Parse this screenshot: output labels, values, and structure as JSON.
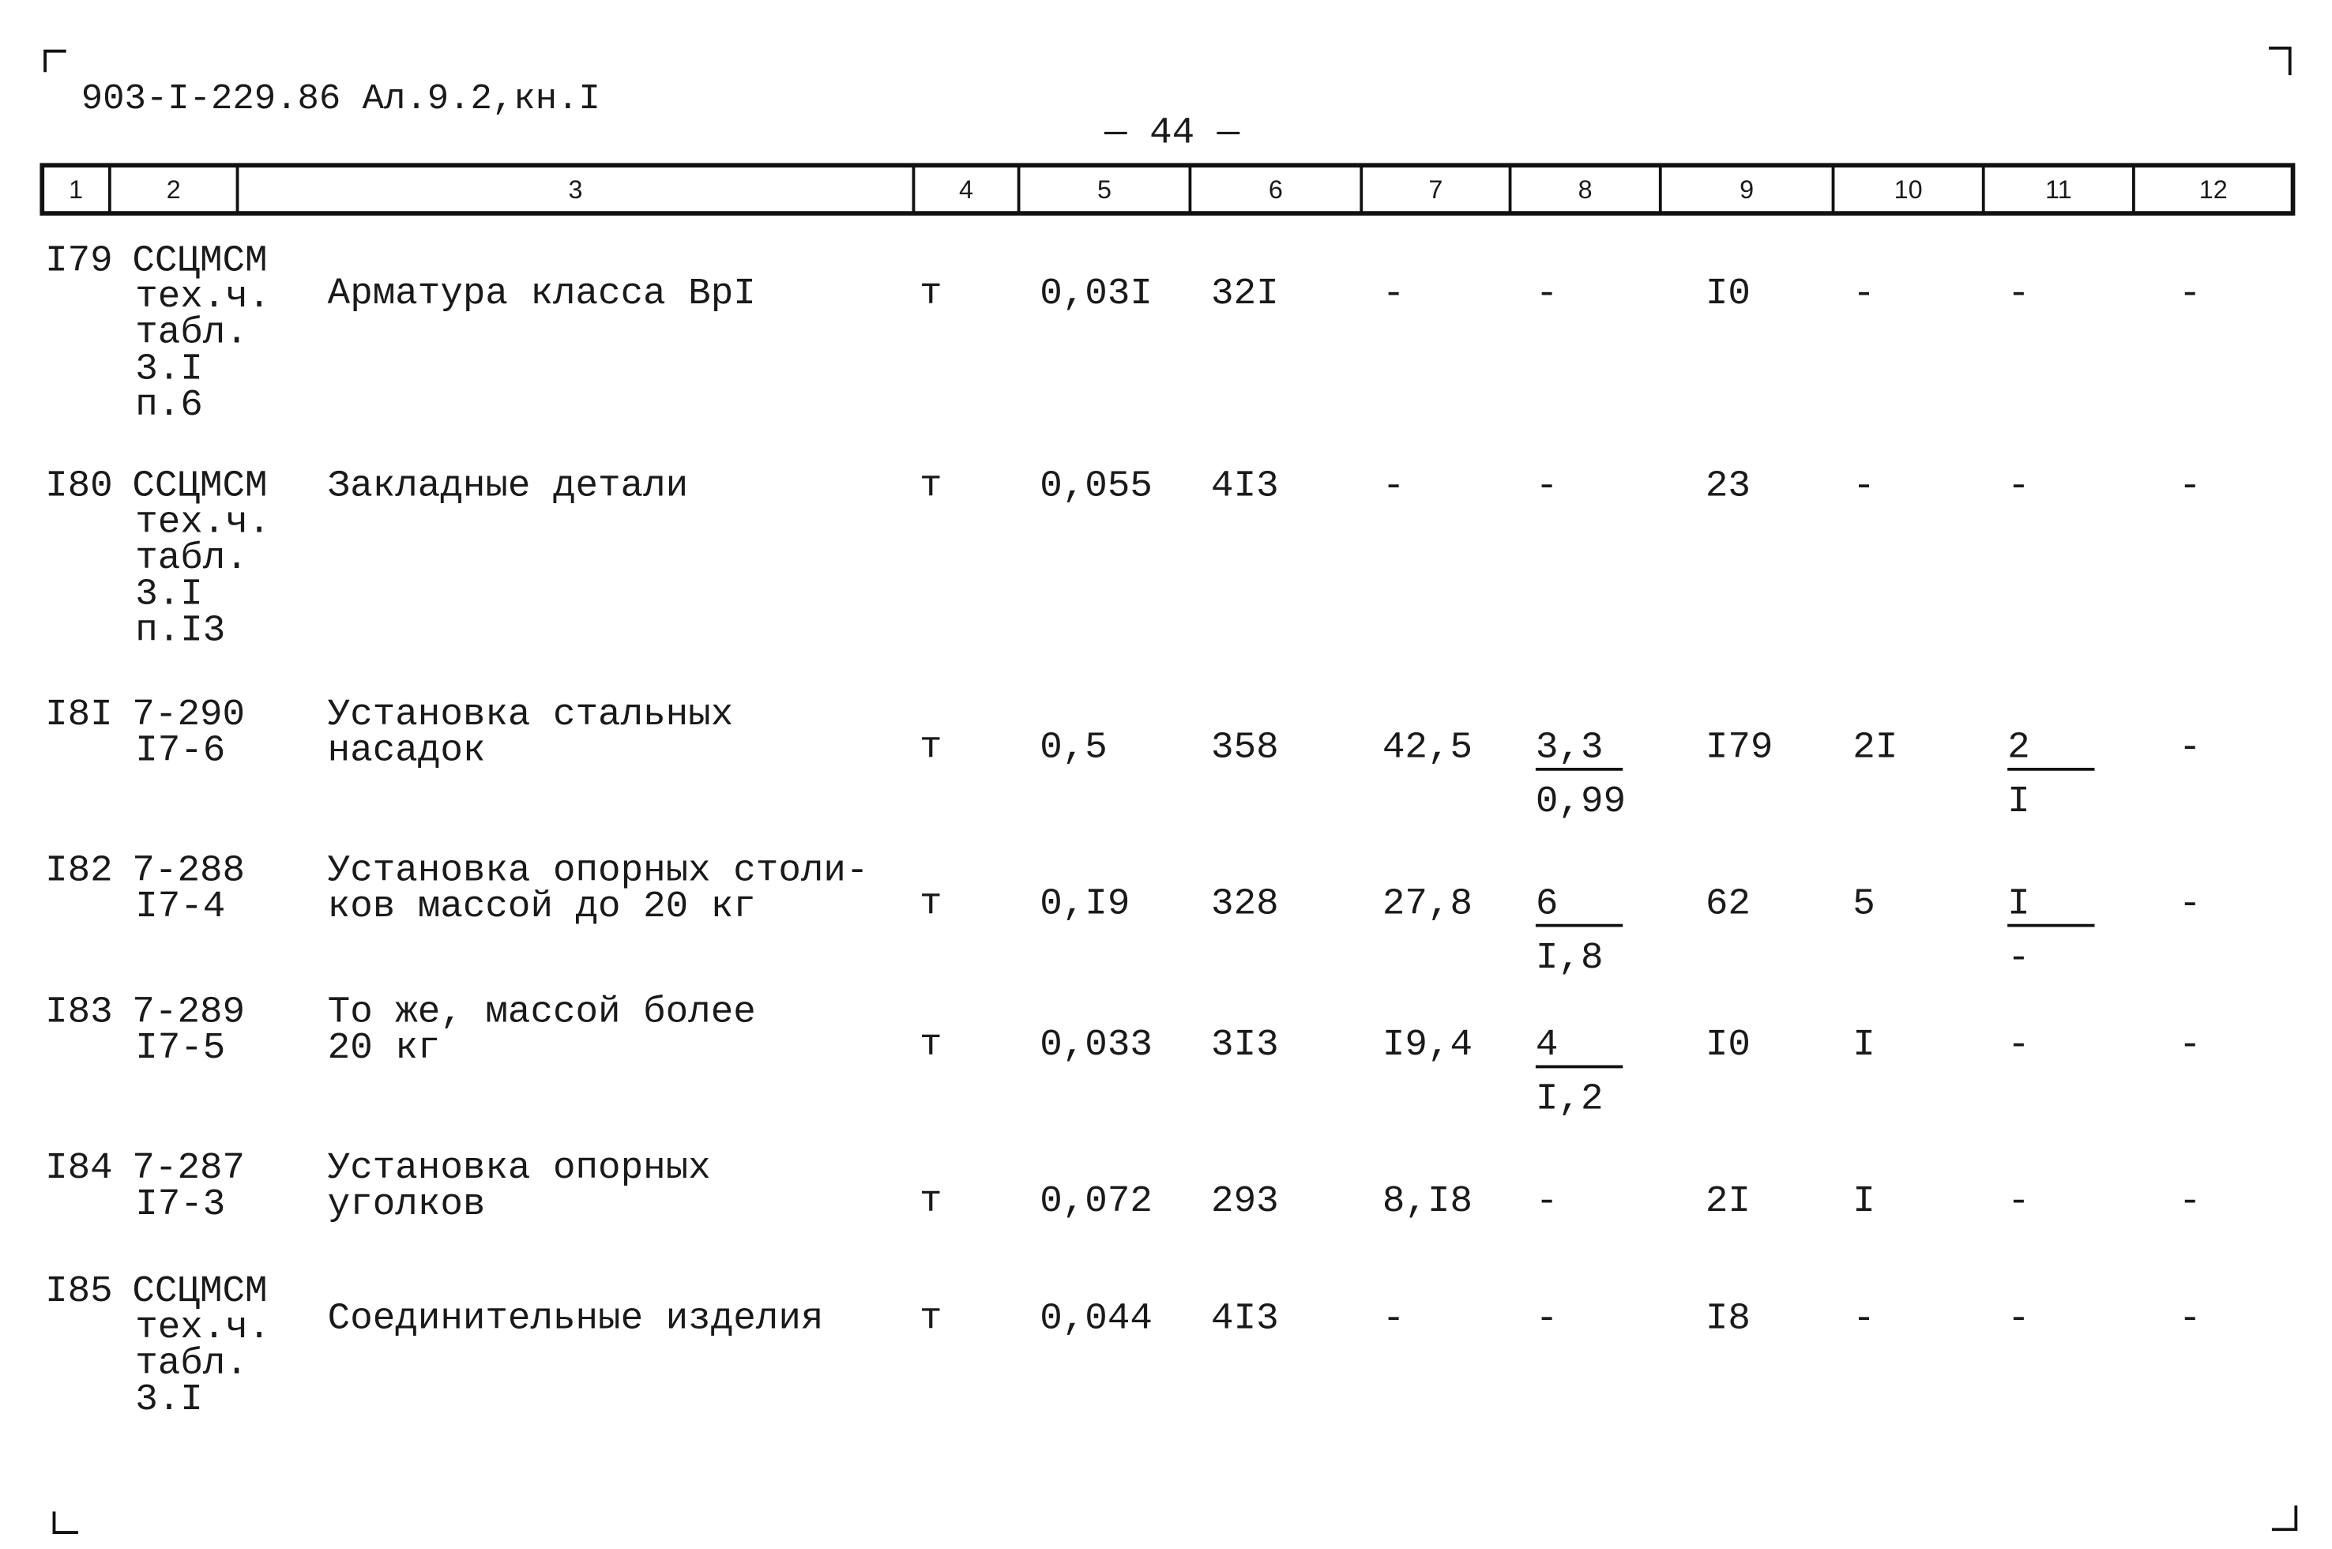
{
  "header": {
    "code": "903-I-229.86 Ал.9.2,кн.I",
    "page": "— 44 —"
  },
  "table": {
    "columns": [
      "1",
      "2",
      "3",
      "4",
      "5",
      "6",
      "7",
      "8",
      "9",
      "10",
      "11",
      "12"
    ],
    "rows": [
      {
        "no": "I79",
        "ref": [
          "ССЦМСМ",
          "тех.ч.",
          "табл.",
          "3.I",
          "п.6"
        ],
        "name": [
          "Арматура класса ВрI"
        ],
        "unit": "т",
        "c5": "0,03I",
        "c6": "32I",
        "c7": "-",
        "c8": "-",
        "c9": "I0",
        "c10": "-",
        "c11": "-",
        "c12": "-"
      },
      {
        "no": "I80",
        "ref": [
          "ССЦМСМ",
          "тех.ч.",
          "табл.",
          "3.I",
          "п.I3"
        ],
        "name": [
          "Закладные детали"
        ],
        "unit": "т",
        "c5": "0,055",
        "c6": "4I3",
        "c7": "-",
        "c8": "-",
        "c9": "23",
        "c10": "-",
        "c11": "-",
        "c12": "-"
      },
      {
        "no": "I8I",
        "ref": [
          "7-290",
          "I7-6"
        ],
        "name": [
          "Установка стальных",
          "насадок"
        ],
        "unit": "т",
        "c5": "0,5",
        "c6": "358",
        "c7": "42,5",
        "c8": {
          "top": "3,3",
          "bottom": "0,99"
        },
        "c9": "I79",
        "c10": "2I",
        "c11": {
          "top": "2",
          "bottom": "I"
        },
        "c12": "-"
      },
      {
        "no": "I82",
        "ref": [
          "7-288",
          "I7-4"
        ],
        "name": [
          "Установка опорных столи-",
          "ков массой до 20 кг"
        ],
        "unit": "т",
        "c5": "0,I9",
        "c6": "328",
        "c7": "27,8",
        "c8": {
          "top": "6",
          "bottom": "I,8"
        },
        "c9": "62",
        "c10": "5",
        "c11": {
          "top": "I",
          "bottom": "-"
        },
        "c12": "-"
      },
      {
        "no": "I83",
        "ref": [
          "7-289",
          "I7-5"
        ],
        "name": [
          "То же, массой более",
          "20 кг"
        ],
        "unit": "т",
        "c5": "0,033",
        "c6": "3I3",
        "c7": "I9,4",
        "c8": {
          "top": "4",
          "bottom": "I,2"
        },
        "c9": "I0",
        "c10": "I",
        "c11": "-",
        "c12": "-"
      },
      {
        "no": "I84",
        "ref": [
          "7-287",
          "I7-3"
        ],
        "name": [
          "Установка опорных",
          "уголков"
        ],
        "unit": "т",
        "c5": "0,072",
        "c6": "293",
        "c7": "8,I8",
        "c8": "-",
        "c9": "2I",
        "c10": "I",
        "c11": "-",
        "c12": "-"
      },
      {
        "no": "I85",
        "ref": [
          "ССЦМСМ",
          "тех.ч.",
          "табл.",
          "3.I"
        ],
        "name": [
          "Соединительные изделия"
        ],
        "unit": "т",
        "c5": "0,044",
        "c6": "4I3",
        "c7": "-",
        "c8": "-",
        "c9": "I8",
        "c10": "-",
        "c11": "-",
        "c12": "-"
      }
    ]
  }
}
